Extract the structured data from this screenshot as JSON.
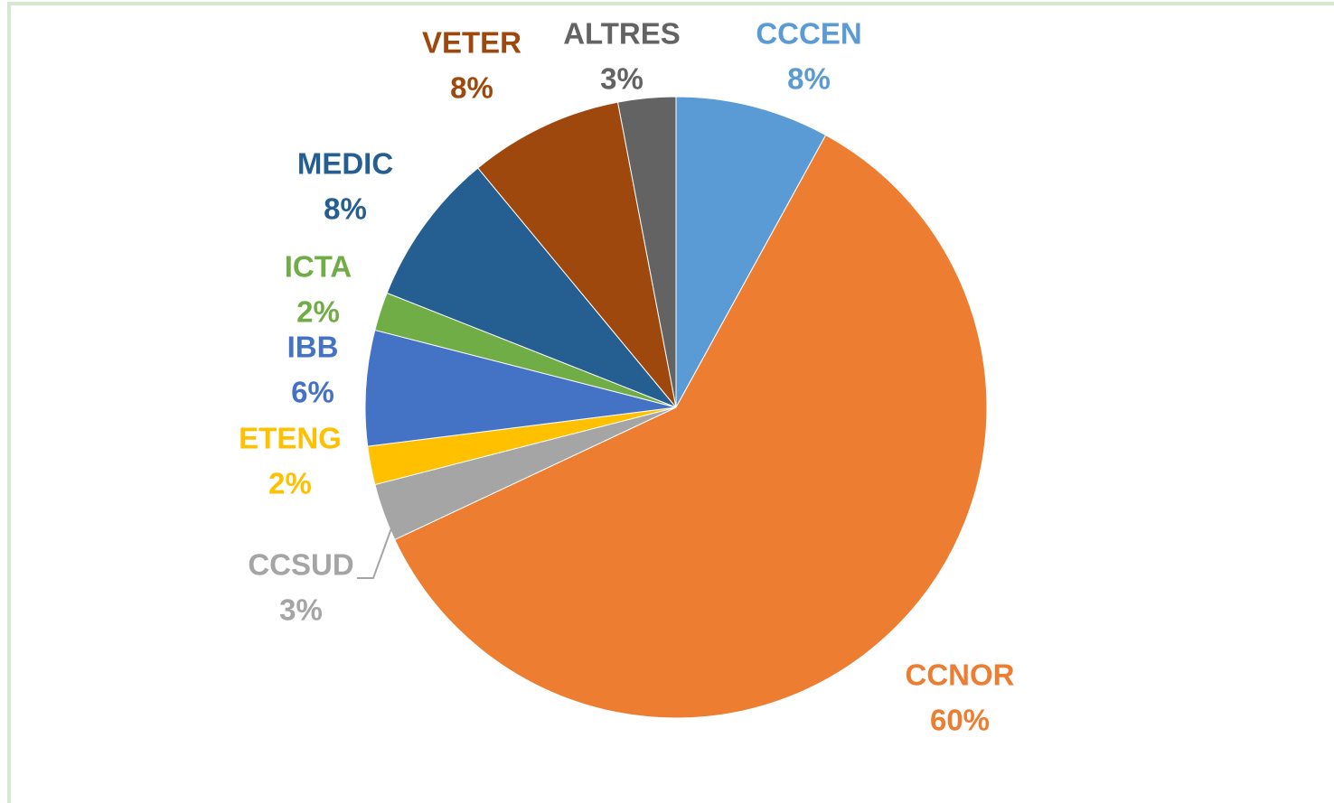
{
  "chart_data": {
    "type": "pie",
    "categories": [
      "CCCEN",
      "CCNOR",
      "CCSUD",
      "ETENG",
      "IBB",
      "ICTA",
      "MEDIC",
      "VETER",
      "ALTRES"
    ],
    "values": [
      8,
      60,
      3,
      2,
      6,
      2,
      8,
      8,
      3
    ],
    "value_labels": [
      "8%",
      "60%",
      "3%",
      "2%",
      "6%",
      "2%",
      "8%",
      "8%",
      "3%"
    ],
    "colors": [
      "#5b9bd5",
      "#ed7d31",
      "#a5a5a5",
      "#ffc000",
      "#4472c4",
      "#70ad47",
      "#255e91",
      "#9e480e",
      "#636363"
    ]
  }
}
